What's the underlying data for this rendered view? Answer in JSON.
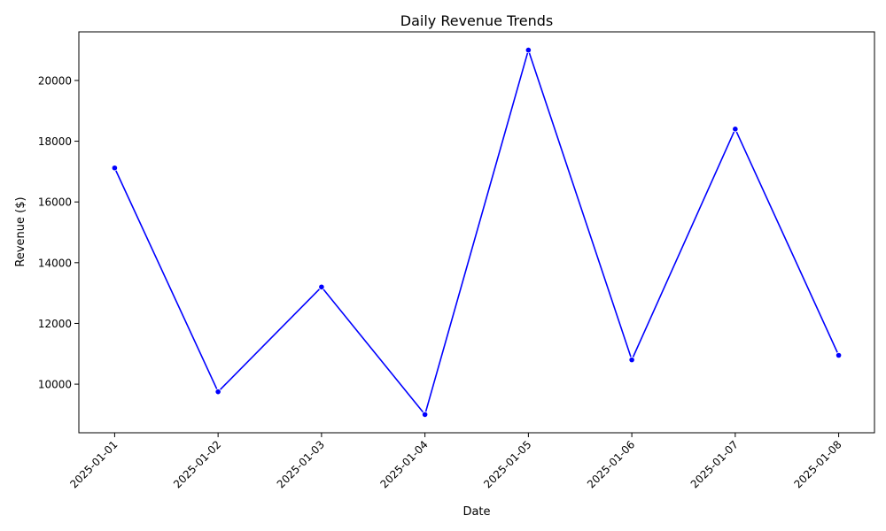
{
  "chart_data": {
    "type": "line",
    "title": "Daily Revenue Trends",
    "xlabel": "Date",
    "ylabel": "Revenue ($)",
    "x": [
      "2025-01-01",
      "2025-01-02",
      "2025-01-03",
      "2025-01-04",
      "2025-01-05",
      "2025-01-06",
      "2025-01-07",
      "2025-01-08"
    ],
    "series": [
      {
        "values": [
          17120,
          9750,
          13200,
          9000,
          21000,
          10800,
          18400,
          10950
        ],
        "color": "#0000ff",
        "marker": "circle"
      }
    ],
    "yticks": [
      10000,
      12000,
      14000,
      16000,
      18000,
      20000
    ],
    "ylim": [
      8400,
      21600
    ],
    "grid": false,
    "legend": "none"
  }
}
